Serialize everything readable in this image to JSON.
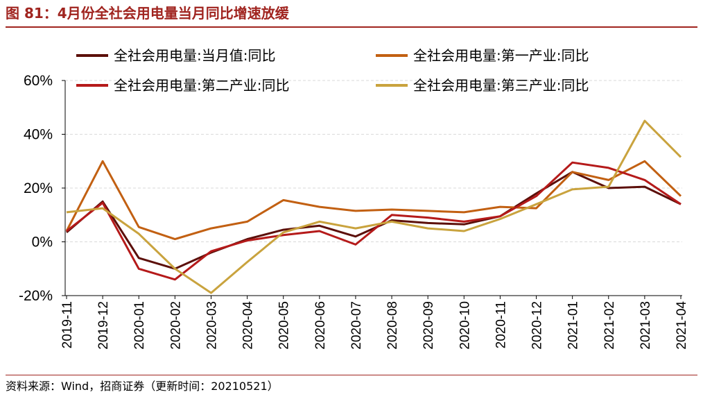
{
  "header": {
    "title": "图 81：4月份全社会用电量当月同比增速放缓"
  },
  "footer": {
    "source": "资料来源：Wind，招商证券（更新时间：20210521）"
  },
  "chart_data": {
    "type": "line",
    "categories": [
      "2019-11",
      "2019-12",
      "2020-01",
      "2020-02",
      "2020-03",
      "2020-04",
      "2020-05",
      "2020-06",
      "2020-07",
      "2020-08",
      "2020-09",
      "2020-10",
      "2020-11",
      "2020-12",
      "2021-01",
      "2021-02",
      "2021-03",
      "2021-04"
    ],
    "ylim": [
      -20,
      60
    ],
    "yticks": [
      -20,
      0,
      20,
      40,
      60
    ],
    "ytick_labels": [
      "-20%",
      "0%",
      "20%",
      "40%",
      "60%"
    ],
    "grid": true,
    "legend_position": "top",
    "series": [
      {
        "name": "全社会用电量:当月值:同比",
        "color": "#5c0f0a",
        "values": [
          3.5,
          15,
          -6,
          -10,
          -4,
          1,
          4.5,
          6,
          2,
          8,
          7,
          6.5,
          9.5,
          18,
          26,
          20,
          20.5,
          14
        ]
      },
      {
        "name": "全社会用电量:第一产业:同比",
        "color": "#c26012",
        "values": [
          4,
          30,
          5.5,
          1,
          5,
          7.5,
          15.5,
          13,
          11.5,
          12,
          11.5,
          11,
          13,
          12.5,
          26,
          23,
          30,
          17
        ]
      },
      {
        "name": "全社会用电量:第二产业:同比",
        "color": "#b51a1a",
        "values": [
          4,
          14.5,
          -10,
          -14,
          -3.5,
          0.5,
          2.5,
          4,
          -1,
          10,
          9,
          7.5,
          9.5,
          17,
          29.5,
          27.5,
          23,
          14
        ]
      },
      {
        "name": "全社会用电量:第三产业:同比",
        "color": "#c9a33e",
        "values": [
          11,
          12.5,
          3,
          -10,
          -19,
          -7.5,
          3.5,
          7.5,
          5,
          7.5,
          5,
          4,
          8.5,
          14,
          19.5,
          20.5,
          45,
          31.5
        ]
      }
    ]
  }
}
